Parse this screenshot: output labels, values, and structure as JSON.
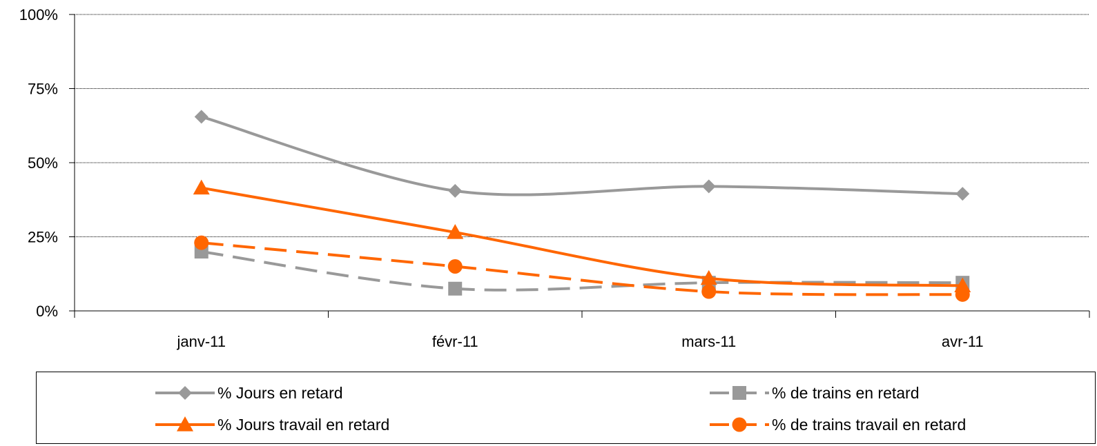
{
  "chart_data": {
    "type": "line",
    "categories": [
      "janv-11",
      "févr-11",
      "mars-11",
      "avr-11"
    ],
    "ylim": [
      0,
      1
    ],
    "yticks": [
      0,
      0.25,
      0.5,
      0.75,
      1
    ],
    "ytick_labels": [
      "0%",
      "25%",
      "50%",
      "75%",
      "100%"
    ],
    "grid": true,
    "legend_position": "bottom",
    "series": [
      {
        "name": "% Jours en retard",
        "values": [
          0.655,
          0.405,
          0.42,
          0.395
        ],
        "color": "#999999",
        "dash": "solid",
        "marker": "diamond"
      },
      {
        "name": "% de trains en retard",
        "values": [
          0.2,
          0.075,
          0.095,
          0.095
        ],
        "color": "#999999",
        "dash": "dashed",
        "marker": "square"
      },
      {
        "name": "% Jours travail en retard",
        "values": [
          0.415,
          0.265,
          0.11,
          0.085
        ],
        "color": "#ff6600",
        "dash": "solid",
        "marker": "triangle"
      },
      {
        "name": "% de trains travail en retard",
        "values": [
          0.23,
          0.15,
          0.065,
          0.055
        ],
        "color": "#ff6600",
        "dash": "dashed",
        "marker": "circle"
      }
    ]
  },
  "legend": {
    "items": [
      {
        "label": "% Jours en retard"
      },
      {
        "label": "% de trains en retard"
      },
      {
        "label": "% Jours travail en retard"
      },
      {
        "label": "% de trains travail en retard"
      }
    ]
  }
}
